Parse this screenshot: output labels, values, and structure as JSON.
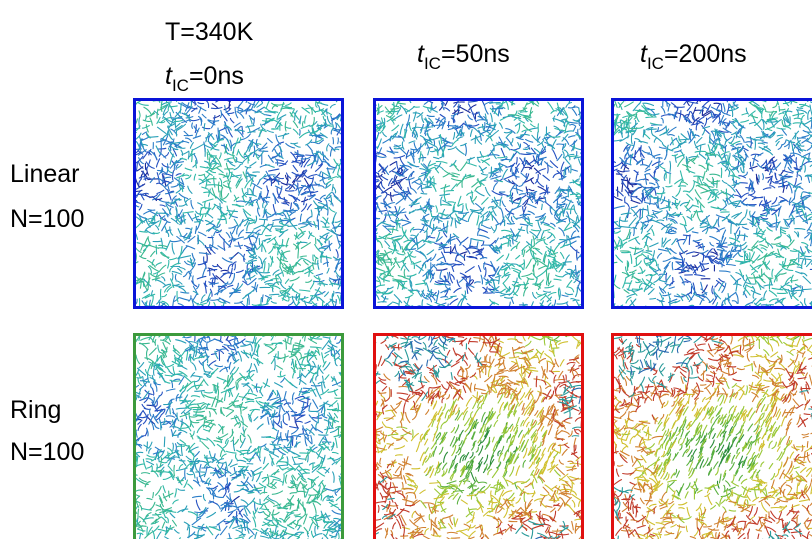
{
  "header": {
    "temperature": "T=340K",
    "columns": [
      {
        "symbol": "t",
        "subscript": "IC",
        "text": "=0ns"
      },
      {
        "symbol": "t",
        "subscript": "IC",
        "text": "=50ns"
      },
      {
        "symbol": "t",
        "subscript": "IC",
        "text": "=200ns"
      }
    ]
  },
  "rows": [
    {
      "label": "Linear",
      "n": "N=100",
      "panels": [
        {
          "border": "#0a14d8"
        },
        {
          "border": "#0a14d8"
        },
        {
          "border": "#0a14d8"
        }
      ]
    },
    {
      "label": "Ring",
      "n": "N=100",
      "panels": [
        {
          "border": "#3c9a3c"
        },
        {
          "border": "#e01010"
        },
        {
          "border": "#e01010"
        }
      ]
    }
  ]
}
